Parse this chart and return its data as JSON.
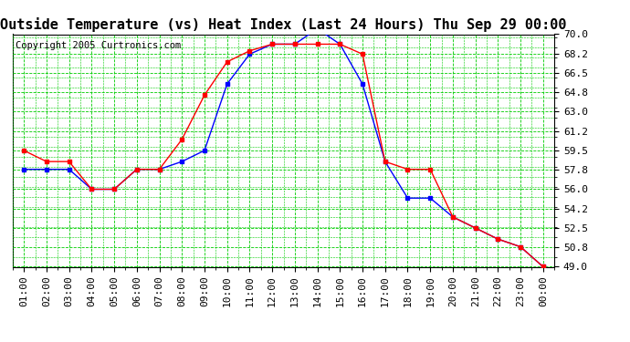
{
  "title": "Outside Temperature (vs) Heat Index (Last 24 Hours) Thu Sep 29 00:00",
  "copyright": "Copyright 2005 Curtronics.com",
  "x_labels": [
    "01:00",
    "02:00",
    "03:00",
    "04:00",
    "05:00",
    "06:00",
    "07:00",
    "08:00",
    "09:00",
    "10:00",
    "11:00",
    "12:00",
    "13:00",
    "14:00",
    "15:00",
    "16:00",
    "17:00",
    "18:00",
    "19:00",
    "20:00",
    "21:00",
    "22:00",
    "23:00",
    "00:00"
  ],
  "temp_blue": [
    57.8,
    57.8,
    57.8,
    56.0,
    56.0,
    57.8,
    57.8,
    58.5,
    59.5,
    65.5,
    68.2,
    69.1,
    69.1,
    70.5,
    69.1,
    65.5,
    58.5,
    55.2,
    55.2,
    53.5,
    52.5,
    51.5,
    50.8,
    49.0
  ],
  "heat_red": [
    59.5,
    58.5,
    58.5,
    56.0,
    56.0,
    57.8,
    57.8,
    60.5,
    64.5,
    67.5,
    68.5,
    69.1,
    69.1,
    69.1,
    69.1,
    68.2,
    58.5,
    57.8,
    57.8,
    53.5,
    52.5,
    51.5,
    50.8,
    49.0
  ],
  "ylim_min": 49.0,
  "ylim_max": 70.0,
  "yticks": [
    49.0,
    50.8,
    52.5,
    54.2,
    56.0,
    57.8,
    59.5,
    61.2,
    63.0,
    64.8,
    66.5,
    68.2,
    70.0
  ],
  "grid_color": "#00cc00",
  "line_blue": "#0000ff",
  "line_red": "#ff0000",
  "title_fontsize": 11,
  "tick_fontsize": 8,
  "copyright_fontsize": 7.5
}
